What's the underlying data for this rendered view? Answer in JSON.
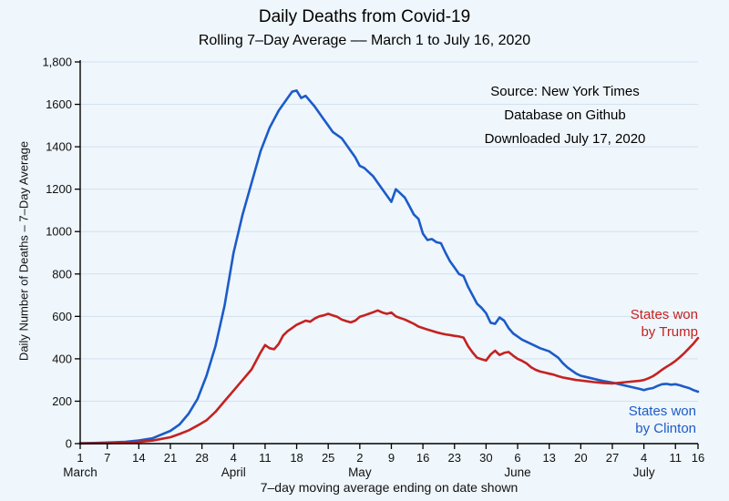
{
  "title": "Daily Deaths from Covid-19",
  "subtitle": "Rolling 7–Day Average –– March 1 to July 16, 2020",
  "ylabel": "Daily Number of Deaths – 7–Day Average",
  "xlabel": "7–day moving average ending on date shown",
  "annotations": {
    "source_line1": "Source:  New York Times",
    "source_line2": "Database on Github",
    "source_line3": "Downloaded July 17, 2020"
  },
  "series_labels": {
    "trump": [
      "States won",
      "by Trump"
    ],
    "clinton": [
      "States won",
      "by Clinton"
    ]
  },
  "colors": {
    "trump": "#c42220",
    "clinton": "#1c5bc8",
    "grid": "#d3e1ef",
    "axis": "#000000",
    "background": "#eff6fc"
  },
  "chart_data": {
    "type": "line",
    "title": "Daily Deaths from Covid-19",
    "subtitle": "Rolling 7–Day Average –– March 1 to July 16, 2020",
    "xlabel": "7–day moving average ending on date shown",
    "ylabel": "Daily Number of Deaths – 7–Day Average",
    "x_unit": "days since March 1, 2020",
    "grid": "horizontal only",
    "legend_position": "inline right annotations",
    "xlim": [
      0,
      137
    ],
    "ylim": [
      0,
      1800
    ],
    "y_ticks": [
      {
        "v": 0,
        "label": "0"
      },
      {
        "v": 200,
        "label": "200"
      },
      {
        "v": 400,
        "label": "400"
      },
      {
        "v": 600,
        "label": "600"
      },
      {
        "v": 800,
        "label": "800"
      },
      {
        "v": 1000,
        "label": "1000"
      },
      {
        "v": 1200,
        "label": "1200"
      },
      {
        "v": 1400,
        "label": "1400"
      },
      {
        "v": 1600,
        "label": "1600"
      },
      {
        "v": 1800,
        "label": "1,800"
      }
    ],
    "x_ticks": [
      {
        "d": 0,
        "label": "1",
        "month": "March"
      },
      {
        "d": 6,
        "label": "7"
      },
      {
        "d": 13,
        "label": "14"
      },
      {
        "d": 20,
        "label": "21"
      },
      {
        "d": 27,
        "label": "28"
      },
      {
        "d": 34,
        "label": "4",
        "month": "April"
      },
      {
        "d": 41,
        "label": "11"
      },
      {
        "d": 48,
        "label": "18"
      },
      {
        "d": 55,
        "label": "25"
      },
      {
        "d": 62,
        "label": "2",
        "month": "May"
      },
      {
        "d": 69,
        "label": "9"
      },
      {
        "d": 76,
        "label": "16"
      },
      {
        "d": 83,
        "label": "23"
      },
      {
        "d": 90,
        "label": "30"
      },
      {
        "d": 97,
        "label": "6",
        "month": "June"
      },
      {
        "d": 104,
        "label": "13"
      },
      {
        "d": 111,
        "label": "20"
      },
      {
        "d": 118,
        "label": "27"
      },
      {
        "d": 125,
        "label": "4",
        "month": "July"
      },
      {
        "d": 132,
        "label": "11"
      },
      {
        "d": 137,
        "label": "16"
      }
    ],
    "series": [
      {
        "name": "States won by Clinton",
        "color": "#1c5bc8",
        "points": [
          [
            0,
            2
          ],
          [
            3,
            3
          ],
          [
            6,
            5
          ],
          [
            10,
            8
          ],
          [
            13,
            15
          ],
          [
            16,
            25
          ],
          [
            20,
            60
          ],
          [
            22,
            90
          ],
          [
            24,
            140
          ],
          [
            26,
            210
          ],
          [
            28,
            320
          ],
          [
            30,
            460
          ],
          [
            32,
            650
          ],
          [
            34,
            900
          ],
          [
            36,
            1080
          ],
          [
            38,
            1230
          ],
          [
            40,
            1380
          ],
          [
            42,
            1490
          ],
          [
            44,
            1570
          ],
          [
            46,
            1630
          ],
          [
            47,
            1660
          ],
          [
            48,
            1665
          ],
          [
            49,
            1630
          ],
          [
            50,
            1640
          ],
          [
            52,
            1590
          ],
          [
            54,
            1530
          ],
          [
            55,
            1500
          ],
          [
            56,
            1470
          ],
          [
            58,
            1440
          ],
          [
            59,
            1410
          ],
          [
            61,
            1350
          ],
          [
            62,
            1310
          ],
          [
            63,
            1300
          ],
          [
            65,
            1260
          ],
          [
            66,
            1230
          ],
          [
            68,
            1170
          ],
          [
            69,
            1140
          ],
          [
            70,
            1200
          ],
          [
            71,
            1180
          ],
          [
            72,
            1160
          ],
          [
            73,
            1120
          ],
          [
            74,
            1080
          ],
          [
            75,
            1060
          ],
          [
            76,
            990
          ],
          [
            77,
            960
          ],
          [
            78,
            965
          ],
          [
            79,
            950
          ],
          [
            80,
            945
          ],
          [
            81,
            900
          ],
          [
            82,
            860
          ],
          [
            83,
            830
          ],
          [
            84,
            800
          ],
          [
            85,
            790
          ],
          [
            86,
            740
          ],
          [
            87,
            700
          ],
          [
            88,
            660
          ],
          [
            89,
            640
          ],
          [
            90,
            615
          ],
          [
            91,
            570
          ],
          [
            92,
            565
          ],
          [
            93,
            595
          ],
          [
            94,
            580
          ],
          [
            95,
            545
          ],
          [
            96,
            520
          ],
          [
            97,
            505
          ],
          [
            98,
            490
          ],
          [
            100,
            470
          ],
          [
            102,
            450
          ],
          [
            104,
            435
          ],
          [
            105,
            420
          ],
          [
            106,
            405
          ],
          [
            107,
            380
          ],
          [
            108,
            360
          ],
          [
            109,
            345
          ],
          [
            110,
            330
          ],
          [
            111,
            320
          ],
          [
            112,
            315
          ],
          [
            113,
            310
          ],
          [
            114,
            305
          ],
          [
            115,
            300
          ],
          [
            116,
            295
          ],
          [
            118,
            288
          ],
          [
            120,
            278
          ],
          [
            122,
            268
          ],
          [
            124,
            258
          ],
          [
            125,
            252
          ],
          [
            126,
            258
          ],
          [
            127,
            262
          ],
          [
            128,
            272
          ],
          [
            129,
            280
          ],
          [
            130,
            282
          ],
          [
            131,
            278
          ],
          [
            132,
            280
          ],
          [
            133,
            275
          ],
          [
            134,
            268
          ],
          [
            135,
            262
          ],
          [
            136,
            252
          ],
          [
            137,
            245
          ]
        ]
      },
      {
        "name": "States won by Trump",
        "color": "#c42220",
        "points": [
          [
            0,
            1
          ],
          [
            6,
            2
          ],
          [
            10,
            4
          ],
          [
            13,
            8
          ],
          [
            16,
            14
          ],
          [
            20,
            30
          ],
          [
            22,
            45
          ],
          [
            24,
            62
          ],
          [
            26,
            85
          ],
          [
            28,
            110
          ],
          [
            30,
            150
          ],
          [
            32,
            200
          ],
          [
            34,
            250
          ],
          [
            36,
            300
          ],
          [
            38,
            350
          ],
          [
            40,
            430
          ],
          [
            41,
            465
          ],
          [
            42,
            450
          ],
          [
            43,
            445
          ],
          [
            44,
            470
          ],
          [
            45,
            510
          ],
          [
            46,
            530
          ],
          [
            47,
            545
          ],
          [
            48,
            560
          ],
          [
            49,
            570
          ],
          [
            50,
            580
          ],
          [
            51,
            575
          ],
          [
            52,
            590
          ],
          [
            53,
            600
          ],
          [
            54,
            605
          ],
          [
            55,
            612
          ],
          [
            56,
            605
          ],
          [
            57,
            598
          ],
          [
            58,
            585
          ],
          [
            59,
            578
          ],
          [
            60,
            572
          ],
          [
            61,
            580
          ],
          [
            62,
            598
          ],
          [
            63,
            605
          ],
          [
            64,
            612
          ],
          [
            65,
            620
          ],
          [
            66,
            628
          ],
          [
            67,
            618
          ],
          [
            68,
            612
          ],
          [
            69,
            618
          ],
          [
            70,
            600
          ],
          [
            71,
            592
          ],
          [
            72,
            585
          ],
          [
            73,
            575
          ],
          [
            74,
            565
          ],
          [
            75,
            552
          ],
          [
            76,
            545
          ],
          [
            77,
            538
          ],
          [
            78,
            532
          ],
          [
            79,
            525
          ],
          [
            80,
            520
          ],
          [
            81,
            515
          ],
          [
            82,
            512
          ],
          [
            83,
            508
          ],
          [
            84,
            505
          ],
          [
            85,
            500
          ],
          [
            86,
            460
          ],
          [
            87,
            430
          ],
          [
            88,
            405
          ],
          [
            89,
            398
          ],
          [
            90,
            392
          ],
          [
            91,
            420
          ],
          [
            92,
            438
          ],
          [
            93,
            418
          ],
          [
            94,
            428
          ],
          [
            95,
            432
          ],
          [
            96,
            415
          ],
          [
            97,
            400
          ],
          [
            98,
            390
          ],
          [
            99,
            378
          ],
          [
            100,
            360
          ],
          [
            101,
            348
          ],
          [
            102,
            340
          ],
          [
            103,
            335
          ],
          [
            104,
            330
          ],
          [
            105,
            325
          ],
          [
            106,
            318
          ],
          [
            107,
            312
          ],
          [
            108,
            308
          ],
          [
            110,
            300
          ],
          [
            112,
            295
          ],
          [
            114,
            290
          ],
          [
            116,
            286
          ],
          [
            118,
            284
          ],
          [
            120,
            288
          ],
          [
            122,
            292
          ],
          [
            124,
            296
          ],
          [
            125,
            300
          ],
          [
            126,
            308
          ],
          [
            127,
            318
          ],
          [
            128,
            332
          ],
          [
            129,
            348
          ],
          [
            130,
            362
          ],
          [
            131,
            375
          ],
          [
            132,
            390
          ],
          [
            133,
            408
          ],
          [
            134,
            428
          ],
          [
            135,
            450
          ],
          [
            136,
            472
          ],
          [
            137,
            498
          ]
        ]
      }
    ]
  }
}
